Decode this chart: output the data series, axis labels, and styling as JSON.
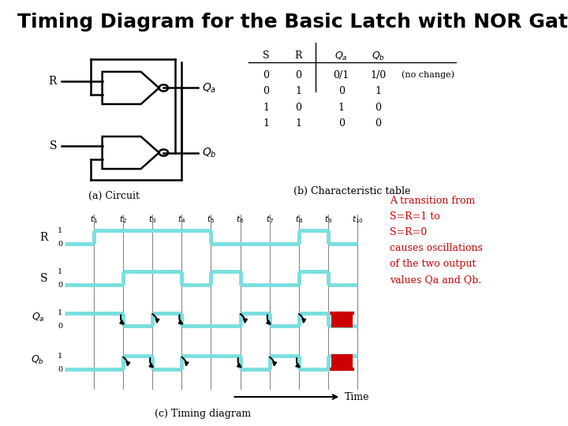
{
  "title": "Timing Diagram for the Basic Latch with NOR Gates",
  "title_fontsize": 18,
  "title_fontweight": "bold",
  "bg_color": "#ffffff",
  "cyan_color": "#7adedf",
  "black_color": "#000000",
  "red_color": "#cc0000",
  "gray_color": "#888888",
  "t_labels": [
    "t1",
    "t2",
    "t3",
    "t4",
    "t5",
    "t6",
    "t7",
    "t8",
    "t9",
    "t10"
  ],
  "annotation_text": "A transition from\nS=R=1 to\nS=R=0\ncauses oscillations\nof the two output\nvalues Qa and Qb.",
  "caption_circuit": "(a) Circuit",
  "caption_char_table": "(b) Characteristic table",
  "caption_timing": "(c) Timing diagram",
  "table_rows": [
    [
      "0",
      "0",
      "0/1",
      "1/0",
      "(no change)"
    ],
    [
      "0",
      "1",
      "0",
      "1",
      ""
    ],
    [
      "1",
      "0",
      "1",
      "0",
      ""
    ],
    [
      "1",
      "1",
      "0",
      "0",
      ""
    ]
  ]
}
